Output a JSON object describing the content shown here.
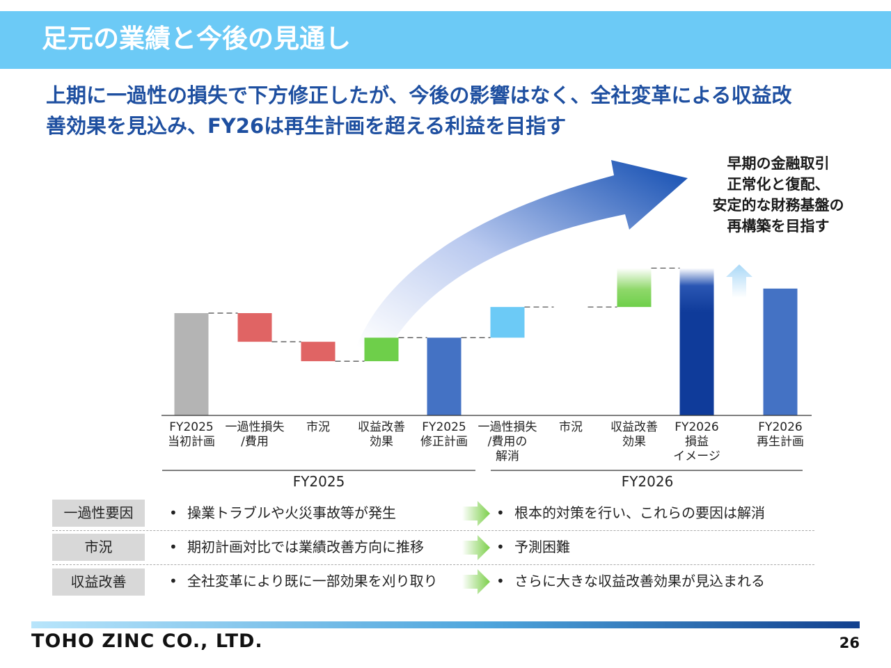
{
  "header": {
    "title": "足元の業績と今後の見通し"
  },
  "subtitle": {
    "line1": "上期に一過性の損失で下方修正したが、今後の影響はなく、全社変革による収益改",
    "line2": "善効果を見込み、FY26は再生計画を超える利益を目指す"
  },
  "callout": {
    "line1": "早期の金融取引",
    "line2": "正常化と復配、",
    "line3": "安定的な財務基盤の",
    "line4": "再構築を目指す"
  },
  "chart_data": {
    "type": "waterfall",
    "note_units": "relative index, axis not shown",
    "groups": [
      {
        "label": "FY2025"
      },
      {
        "label": "FY2026"
      }
    ],
    "bars": [
      {
        "label": "FY2025\n当初計画",
        "kind": "total",
        "value": 100,
        "color": "#b4b4b4"
      },
      {
        "label": "一過性損失\n/費用",
        "kind": "delta",
        "value": -28,
        "color": "#e06464"
      },
      {
        "label": "市況",
        "kind": "delta",
        "value": -19,
        "color": "#e06464"
      },
      {
        "label": "収益改善\n効果",
        "kind": "delta",
        "value": 23,
        "color": "#6ecf4a"
      },
      {
        "label": "FY2025\n修正計画",
        "kind": "total",
        "value": 76,
        "color": "#4472c4"
      },
      {
        "label": "一過性損失\n/費用の\n解消",
        "kind": "delta",
        "value": 30,
        "color": "#6ccaf6"
      },
      {
        "label": "市況",
        "kind": "delta",
        "value": 0,
        "color": "#6ccaf6"
      },
      {
        "label": "収益改善\n効果",
        "kind": "delta",
        "value": 38,
        "color": "#6ecf4a",
        "gradient": true
      },
      {
        "label": "FY2026\n損益\nイメージ",
        "kind": "total",
        "value": 144,
        "color": "#0f3b9a",
        "gradient": true
      },
      {
        "label": "FY2026\n再生計画",
        "kind": "total",
        "value": 124,
        "color": "#4472c4"
      }
    ]
  },
  "table": {
    "rows": [
      {
        "head": "一過性要因",
        "left": "操業トラブルや火災事故等が発生",
        "right": "根本的対策を行い、これらの要因は解消"
      },
      {
        "head": "市況",
        "left": "期初計画対比では業績改善方向に推移",
        "right": "予測困難"
      },
      {
        "head": "収益改善",
        "left": "全社変革により既に一部効果を刈り取り",
        "right": "さらに大きな収益改善効果が見込まれる"
      }
    ],
    "bullet": "•"
  },
  "footer": {
    "company": "TOHO ZINC CO., LTD.",
    "page": "26"
  }
}
